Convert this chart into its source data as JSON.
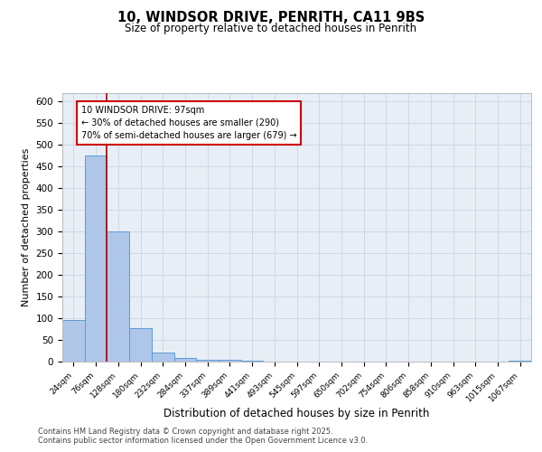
{
  "title_line1": "10, WINDSOR DRIVE, PENRITH, CA11 9BS",
  "title_line2": "Size of property relative to detached houses in Penrith",
  "xlabel": "Distribution of detached houses by size in Penrith",
  "ylabel": "Number of detached properties",
  "bin_labels": [
    "24sqm",
    "76sqm",
    "128sqm",
    "180sqm",
    "232sqm",
    "284sqm",
    "337sqm",
    "389sqm",
    "441sqm",
    "493sqm",
    "545sqm",
    "597sqm",
    "650sqm",
    "702sqm",
    "754sqm",
    "806sqm",
    "858sqm",
    "910sqm",
    "963sqm",
    "1015sqm",
    "1067sqm"
  ],
  "bar_heights": [
    95,
    475,
    300,
    77,
    20,
    8,
    5,
    4,
    2,
    1,
    1,
    1,
    0,
    0,
    0,
    0,
    0,
    0,
    0,
    0,
    2
  ],
  "bar_color": "#aec6e8",
  "bar_edge_color": "#5b9bd5",
  "grid_color": "#ccd9e8",
  "background_color": "#e8eef5",
  "red_line_x": 1.5,
  "annotation_text_line1": "10 WINDSOR DRIVE: 97sqm",
  "annotation_text_line2": "← 30% of detached houses are smaller (290)",
  "annotation_text_line3": "70% of semi-detached houses are larger (679) →",
  "annotation_box_color": "#ffffff",
  "annotation_box_edge": "#cc0000",
  "ylim": [
    0,
    620
  ],
  "yticks": [
    0,
    50,
    100,
    150,
    200,
    250,
    300,
    350,
    400,
    450,
    500,
    550,
    600
  ],
  "footer_line1": "Contains HM Land Registry data © Crown copyright and database right 2025.",
  "footer_line2": "Contains public sector information licensed under the Open Government Licence v3.0."
}
